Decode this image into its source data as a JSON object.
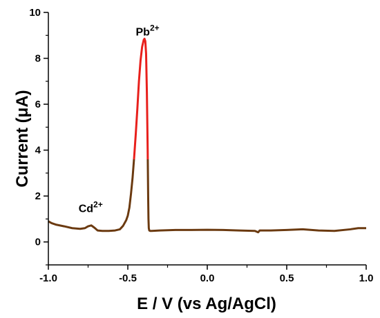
{
  "chart_data": {
    "type": "line",
    "title": "",
    "xlabel": "E / V (vs Ag/AgCl)",
    "ylabel": "Current (μA)",
    "xlim": [
      -1.0,
      1.0
    ],
    "ylim": [
      -1,
      10
    ],
    "xticks": [
      -1.0,
      -0.5,
      0.0,
      0.5,
      1.0
    ],
    "xtick_labels": [
      "-1.0",
      "-0.5",
      "0.0",
      "0.5",
      "1.0"
    ],
    "yticks": [
      0,
      2,
      4,
      6,
      8,
      10
    ],
    "ytick_labels": [
      "0",
      "2",
      "4",
      "6",
      "8",
      "10"
    ],
    "grid": false,
    "legend": "none",
    "series": [
      {
        "color": "#e8201c",
        "lower_color": "#6b3a10",
        "x": [
          -1.0,
          -0.98,
          -0.95,
          -0.9,
          -0.85,
          -0.8,
          -0.77,
          -0.75,
          -0.73,
          -0.71,
          -0.69,
          -0.66,
          -0.62,
          -0.58,
          -0.55,
          -0.53,
          -0.51,
          -0.5,
          -0.49,
          -0.48,
          -0.47,
          -0.46,
          -0.45,
          -0.44,
          -0.43,
          -0.42,
          -0.41,
          -0.4,
          -0.395,
          -0.39,
          -0.385,
          -0.38,
          -0.375,
          -0.372,
          -0.37,
          -0.368,
          -0.365,
          -0.36,
          -0.35,
          -0.3,
          -0.2,
          -0.1,
          0.0,
          0.1,
          0.2,
          0.3,
          0.32,
          0.33,
          0.35,
          0.4,
          0.5,
          0.6,
          0.7,
          0.8,
          0.9,
          0.95,
          1.0
        ],
        "y": [
          0.9,
          0.82,
          0.75,
          0.68,
          0.6,
          0.57,
          0.6,
          0.68,
          0.72,
          0.62,
          0.5,
          0.48,
          0.48,
          0.5,
          0.55,
          0.7,
          0.95,
          1.15,
          1.5,
          2.1,
          2.8,
          3.7,
          4.7,
          5.8,
          7.0,
          7.9,
          8.5,
          8.8,
          8.85,
          8.75,
          8.2,
          6.5,
          4.0,
          2.0,
          1.0,
          0.6,
          0.5,
          0.48,
          0.48,
          0.5,
          0.52,
          0.52,
          0.53,
          0.52,
          0.5,
          0.48,
          0.42,
          0.5,
          0.5,
          0.5,
          0.52,
          0.55,
          0.5,
          0.48,
          0.55,
          0.6,
          0.6
        ]
      }
    ],
    "annotations": [
      {
        "base": "Cd",
        "sup": "2+",
        "x": -0.81,
        "y": 1.3
      },
      {
        "base": "Pb",
        "sup": "2+",
        "x": -0.45,
        "y": 9.0
      }
    ]
  }
}
